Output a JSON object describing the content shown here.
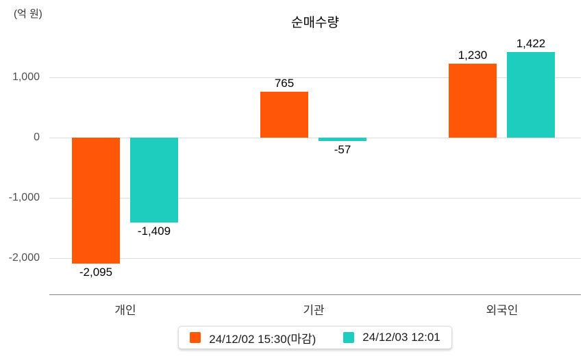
{
  "unit_label": "(억 원)",
  "title": "순매수량",
  "colors": {
    "series1": "#FF5707",
    "series2": "#1FCDBE",
    "gridline": "#DBDBDB",
    "axis_line": "#838383",
    "tick_text": "#4E4E4E",
    "category_text": "#333333",
    "value_text": "#000000"
  },
  "chart_data": {
    "type": "bar",
    "title": "순매수량",
    "unit": "(억 원)",
    "categories": [
      "개인",
      "기관",
      "외국인"
    ],
    "series": [
      {
        "name": "24/12/02 15:30(마감)",
        "color": "#FF5707",
        "values": [
          -2095,
          765,
          1230
        ],
        "labels": [
          "-2,095",
          "765",
          "1,230"
        ]
      },
      {
        "name": "24/12/03 12:01",
        "color": "#1FCDBE",
        "values": [
          -1409,
          -57,
          1422
        ],
        "labels": [
          "-1,409",
          "-57",
          "1,422"
        ]
      }
    ],
    "y_ticks": [
      {
        "value": 1000,
        "label": "1,000"
      },
      {
        "value": 0,
        "label": "0"
      },
      {
        "value": -1000,
        "label": "-1,000"
      },
      {
        "value": -2000,
        "label": "-2,000"
      }
    ],
    "ylim": [
      -2400,
      1600
    ],
    "grid": true,
    "legend_position": "bottom"
  }
}
